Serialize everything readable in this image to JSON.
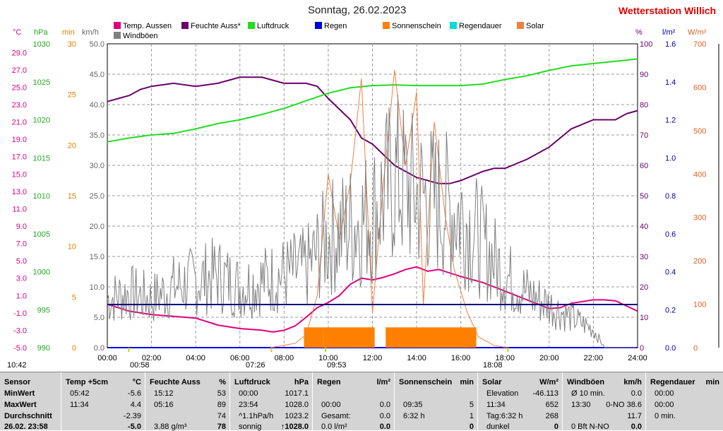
{
  "header": {
    "title": "Sonntag, 26.02.2023",
    "brand": "Wetterstation Willich"
  },
  "legend": [
    {
      "label": "Temp. Aussen",
      "color": "#e0007e"
    },
    {
      "label": "Feuchte Auss*",
      "color": "#6a006a"
    },
    {
      "label": "Luftdruck",
      "color": "#22dd22"
    },
    {
      "label": "Regen",
      "color": "#0000dd"
    },
    {
      "label": "Sonnenschein",
      "color": "#ff8000"
    },
    {
      "label": "Regendauer",
      "color": "#00dddd"
    },
    {
      "label": "Solar",
      "color": "#f08040"
    },
    {
      "label": "Windböen",
      "color": "#808080"
    }
  ],
  "axes": {
    "temp": {
      "unit": "°C",
      "color": "#e0007e",
      "ticks": [
        "29.0",
        "27.0",
        "25.0",
        "23.0",
        "21.0",
        "19.0",
        "17.0",
        "15.0",
        "13.0",
        "11.0",
        "9.0",
        "7.0",
        "5.0",
        "3.0",
        "1.0",
        "-1.0",
        "-3.0",
        "-5.0"
      ]
    },
    "pressure": {
      "unit": "hPa",
      "color": "#22aa22",
      "ticks": [
        "1030",
        "1025",
        "1020",
        "1015",
        "1010",
        "1005",
        "1000",
        "995",
        "990"
      ]
    },
    "minutes": {
      "unit": "min",
      "color": "#e08000",
      "ticks": [
        "30",
        "25",
        "20",
        "15",
        "10",
        "5",
        "0"
      ]
    },
    "wind": {
      "unit": "km/h",
      "color": "#666666",
      "ticks": [
        "50.0",
        "45.0",
        "40.0",
        "35.0",
        "30.0",
        "25.0",
        "20.0",
        "15.0",
        "10.0",
        "5.0",
        "0.0"
      ]
    },
    "humidity": {
      "unit": "%",
      "color": "#6a006a",
      "ticks": [
        "100",
        "90",
        "80",
        "70",
        "60",
        "50",
        "40",
        "30",
        "20",
        "10",
        "0"
      ]
    },
    "rain": {
      "unit": "l/m²",
      "color": "#0000aa",
      "ticks": [
        "1.6",
        "1.4",
        "1.2",
        "1.0",
        "0.8",
        "0.6",
        "0.4",
        "0.2",
        "0.0"
      ]
    },
    "solar": {
      "unit": "W/m²",
      "color": "#e06020",
      "ticks": [
        "700",
        "600",
        "500",
        "400",
        "300",
        "200",
        "100",
        "0"
      ]
    },
    "time_ticks": [
      "00:00",
      "02:00",
      "04:00",
      "06:00",
      "08:00",
      "10:00",
      "12:00",
      "14:00",
      "16:00",
      "18:00",
      "20:00",
      "22:00",
      "24:00"
    ]
  },
  "markers": {
    "moonset": "00:58",
    "sunrise": "07:26",
    "solar_noon": "09:53",
    "sunset": "18:08",
    "time_left": "10:42"
  },
  "chart_data": {
    "type": "line",
    "x_unit": "hours",
    "xlim": [
      0,
      24
    ],
    "series": [
      {
        "name": "Temp. Aussen",
        "unit": "°C",
        "ylim": [
          -5,
          30
        ],
        "points": [
          [
            0,
            0.0
          ],
          [
            0.5,
            -0.4
          ],
          [
            1,
            -0.8
          ],
          [
            2,
            -1.2
          ],
          [
            3,
            -1.4
          ],
          [
            4,
            -1.6
          ],
          [
            5,
            -2.4
          ],
          [
            6,
            -2.8
          ],
          [
            7,
            -3.0
          ],
          [
            7.5,
            -3.2
          ],
          [
            8,
            -3.0
          ],
          [
            8.5,
            -2.5
          ],
          [
            9,
            -1.5
          ],
          [
            9.5,
            -0.4
          ],
          [
            10,
            0.2
          ],
          [
            10.5,
            1.0
          ],
          [
            11,
            2.3
          ],
          [
            11.5,
            3.0
          ],
          [
            12,
            2.8
          ],
          [
            12.5,
            3.1
          ],
          [
            13,
            3.5
          ],
          [
            13.5,
            4.0
          ],
          [
            14,
            4.3
          ],
          [
            14.5,
            3.8
          ],
          [
            15,
            4.0
          ],
          [
            15.5,
            3.6
          ],
          [
            16,
            3.2
          ],
          [
            17,
            2.5
          ],
          [
            18,
            1.5
          ],
          [
            19,
            0.5
          ],
          [
            20,
            -0.5
          ],
          [
            20.5,
            -0.4
          ],
          [
            21,
            0.1
          ],
          [
            22,
            0.5
          ],
          [
            22.5,
            0.5
          ],
          [
            23,
            0.4
          ],
          [
            24,
            -0.8
          ]
        ]
      },
      {
        "name": "Feuchte Auss*",
        "unit": "%",
        "ylim": [
          0,
          100
        ],
        "points": [
          [
            0,
            81
          ],
          [
            0.5,
            82
          ],
          [
            1,
            83
          ],
          [
            1.5,
            85
          ],
          [
            2,
            86
          ],
          [
            3,
            87
          ],
          [
            4,
            86
          ],
          [
            5,
            87
          ],
          [
            6,
            89
          ],
          [
            7,
            89
          ],
          [
            7.5,
            88
          ],
          [
            8,
            87
          ],
          [
            9,
            87
          ],
          [
            9.5,
            86
          ],
          [
            10,
            82
          ],
          [
            11,
            75
          ],
          [
            11.5,
            69
          ],
          [
            12,
            67
          ],
          [
            13,
            60
          ],
          [
            14,
            56
          ],
          [
            15,
            54
          ],
          [
            15.5,
            54
          ],
          [
            16,
            55
          ],
          [
            17,
            58
          ],
          [
            17.5,
            59
          ],
          [
            18,
            59
          ],
          [
            19,
            62
          ],
          [
            20,
            66
          ],
          [
            21,
            72
          ],
          [
            22,
            75
          ],
          [
            23,
            75
          ],
          [
            23.5,
            77
          ],
          [
            24,
            78
          ]
        ]
      },
      {
        "name": "Luftdruck",
        "unit": "hPa",
        "ylim": [
          990,
          1030
        ],
        "points": [
          [
            0,
            1017.1
          ],
          [
            1,
            1017.6
          ],
          [
            2,
            1018.0
          ],
          [
            3,
            1018.2
          ],
          [
            4,
            1018.8
          ],
          [
            5,
            1019.5
          ],
          [
            6,
            1020.0
          ],
          [
            7,
            1020.7
          ],
          [
            8,
            1021.5
          ],
          [
            9,
            1022.5
          ],
          [
            10,
            1023.5
          ],
          [
            11,
            1024.2
          ],
          [
            12,
            1024.5
          ],
          [
            13,
            1024.6
          ],
          [
            14,
            1024.5
          ],
          [
            15,
            1024.5
          ],
          [
            16,
            1024.5
          ],
          [
            17,
            1024.7
          ],
          [
            18,
            1025.3
          ],
          [
            19,
            1025.8
          ],
          [
            20,
            1026.5
          ],
          [
            21,
            1027.1
          ],
          [
            22,
            1027.4
          ],
          [
            23,
            1027.7
          ],
          [
            24,
            1028.0
          ]
        ]
      },
      {
        "name": "Regen",
        "unit": "l/m²",
        "ylim": [
          0,
          1.6
        ],
        "points": [
          [
            0,
            0
          ],
          [
            24,
            0
          ]
        ]
      },
      {
        "name": "Sonnenschein",
        "unit": "min",
        "ylim": [
          0,
          30
        ],
        "points": [
          [
            8.9,
            2
          ],
          [
            9.8,
            2
          ],
          [
            9.8,
            2
          ],
          [
            12.1,
            2
          ],
          [
            12.6,
            2
          ],
          [
            16.7,
            2
          ]
        ]
      },
      {
        "name": "Solar",
        "unit": "W/m²",
        "ylim": [
          0,
          700
        ],
        "points": [
          [
            7.4,
            0
          ],
          [
            8.5,
            10
          ],
          [
            9,
            30
          ],
          [
            9.5,
            120
          ],
          [
            10,
            400
          ],
          [
            10.5,
            250
          ],
          [
            11,
            380
          ],
          [
            11.5,
            620
          ],
          [
            12,
            80
          ],
          [
            12.5,
            380
          ],
          [
            13,
            640
          ],
          [
            13.5,
            420
          ],
          [
            14,
            590
          ],
          [
            14.3,
            100
          ],
          [
            14.8,
            520
          ],
          [
            15.3,
            300
          ],
          [
            15.7,
            180
          ],
          [
            16.3,
            80
          ],
          [
            16.8,
            25
          ],
          [
            17.5,
            5
          ],
          [
            18.1,
            0
          ]
        ]
      },
      {
        "name": "Windböen",
        "unit": "km/h",
        "ylim": [
          0,
          50
        ],
        "points": [
          [
            0,
            8
          ],
          [
            1,
            9
          ],
          [
            2,
            8
          ],
          [
            3,
            10
          ],
          [
            4,
            11
          ],
          [
            5,
            12
          ],
          [
            6,
            10
          ],
          [
            7,
            11
          ],
          [
            8,
            12
          ],
          [
            9,
            13
          ],
          [
            10,
            18
          ],
          [
            11,
            20
          ],
          [
            12,
            22
          ],
          [
            13,
            28
          ],
          [
            14,
            25
          ],
          [
            15,
            24
          ],
          [
            16,
            22
          ],
          [
            17,
            17
          ],
          [
            18,
            12
          ],
          [
            19,
            9
          ],
          [
            20,
            7
          ],
          [
            21,
            5
          ],
          [
            22,
            3
          ],
          [
            22.5,
            0
          ],
          [
            24,
            0
          ]
        ]
      }
    ]
  },
  "table": {
    "rows": [
      "MinWert",
      "MaxWert",
      "Durchschnitt"
    ],
    "cols": [
      {
        "header": "Sensor",
        "unit": "",
        "cells": [
          "",
          "",
          ""
        ],
        "bottom": "26.02. 23:58"
      },
      {
        "header": "Temp +5cm",
        "unit": "°C",
        "cells": [
          [
            "05:42",
            "-5.6"
          ],
          [
            "11:34",
            "4.4"
          ],
          [
            "",
            "-2.39"
          ]
        ],
        "bottom": "-5.0"
      },
      {
        "header": "Feuchte Auss",
        "unit": "%",
        "cells": [
          [
            "15:12",
            "53"
          ],
          [
            "05:16",
            "89"
          ],
          [
            "",
            "74"
          ]
        ],
        "bottom_left": "3.88 g/m³",
        "bottom": "78"
      },
      {
        "header": "Luftdruck",
        "unit": "hPa",
        "cells": [
          [
            "00:00",
            "1017.1"
          ],
          [
            "23:54",
            "1028.0"
          ],
          [
            "^1.1hPa/h",
            "1023.2"
          ]
        ],
        "bottom_left": "sonnig",
        "bottom": "↑1028.0"
      },
      {
        "header": "Regen",
        "unit": "l/m²",
        "cells": [
          [
            "",
            ""
          ],
          [
            "00:00",
            "0.0"
          ],
          [
            "Gesamt:",
            "0.0"
          ]
        ],
        "bottom_left": "0.0 l/m²",
        "bottom": "0.0"
      },
      {
        "header": "Sonnenschein",
        "unit": "min",
        "cells": [
          [
            "",
            ""
          ],
          [
            "09:35",
            "5"
          ],
          [
            "6:32 h",
            "1"
          ]
        ],
        "bottom": "0"
      },
      {
        "header": "Solar",
        "unit": "W/m²",
        "cells": [
          [
            "Elevation",
            "-46.113"
          ],
          [
            "11:34",
            "652"
          ],
          [
            "Tag:6:32 h",
            "268"
          ]
        ],
        "bottom_left": "dunkel",
        "bottom": "0"
      },
      {
        "header": "Windböen",
        "unit": "km/h",
        "cells": [
          [
            "Ø 10 min.",
            "0.0"
          ],
          [
            "13:30",
            "0-NO 38.6"
          ],
          [
            "",
            "11.7"
          ]
        ],
        "bottom_left": "0 Bft N-NO",
        "bottom": "0.0"
      },
      {
        "header": "Regendauer",
        "unit": "min",
        "cells": [
          [
            "00:00",
            ""
          ],
          [
            "00:00",
            ""
          ],
          [
            "0 min.",
            ""
          ]
        ],
        "bottom": ""
      }
    ]
  }
}
